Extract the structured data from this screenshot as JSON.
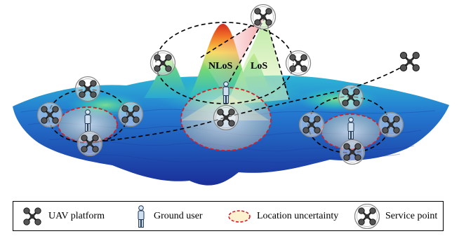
{
  "figure": {
    "labels": {
      "nlos": "NLoS",
      "los": "LoS"
    }
  },
  "legend": {
    "items": [
      {
        "icon": "uav-platform-icon",
        "label": "UAV platform"
      },
      {
        "icon": "ground-user-icon",
        "label": "Ground user"
      },
      {
        "icon": "location-uncertainty-icon",
        "label": "Location uncertainty"
      },
      {
        "icon": "service-point-icon",
        "label": "Service point"
      }
    ]
  },
  "colors": {
    "terrain_low": "#1f3fae",
    "terrain_mid": "#25b8d8",
    "terrain_high": "#f7d94a",
    "peak": "#d62a1e",
    "uncertainty": "#d0202a"
  }
}
